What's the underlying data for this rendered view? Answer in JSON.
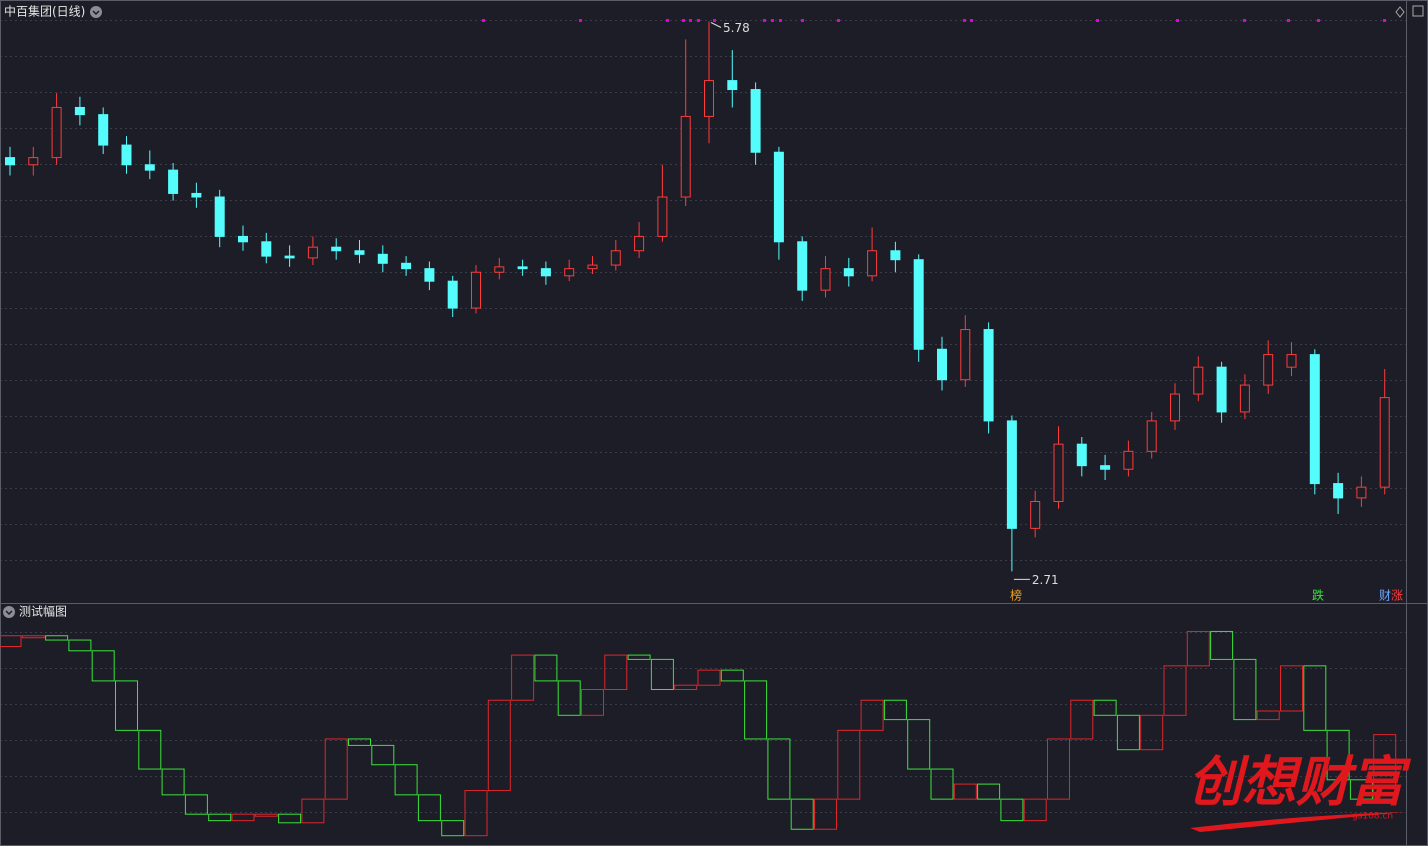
{
  "chart_data": [
    {
      "type": "candlestick",
      "title": "中百集团(日线)",
      "open": [
        5.02,
        4.98,
        5.02,
        5.3,
        5.26,
        5.09,
        4.98,
        4.95,
        4.82,
        4.8,
        4.58,
        4.55,
        4.47,
        4.46,
        4.52,
        4.5,
        4.48,
        4.43,
        4.4,
        4.33,
        4.18,
        4.38,
        4.41,
        4.4,
        4.36,
        4.4,
        4.42,
        4.5,
        4.58,
        4.8,
        5.25,
        5.45,
        5.4,
        5.05,
        4.55,
        4.28,
        4.4,
        4.36,
        4.5,
        4.45,
        3.95,
        3.78,
        4.06,
        3.55,
        2.95,
        3.1,
        3.42,
        3.3,
        3.28,
        3.38,
        3.55,
        3.7,
        3.85,
        3.6,
        3.75,
        3.85,
        3.92,
        3.2,
        3.12,
        3.18
      ],
      "high": [
        5.08,
        5.08,
        5.38,
        5.36,
        5.3,
        5.14,
        5.06,
        4.99,
        4.88,
        4.84,
        4.64,
        4.6,
        4.53,
        4.58,
        4.57,
        4.56,
        4.53,
        4.47,
        4.44,
        4.36,
        4.42,
        4.46,
        4.45,
        4.44,
        4.45,
        4.47,
        4.56,
        4.66,
        4.98,
        5.68,
        5.78,
        5.62,
        5.44,
        5.08,
        4.58,
        4.47,
        4.46,
        4.63,
        4.55,
        4.48,
        4.02,
        4.14,
        4.1,
        3.58,
        3.16,
        3.52,
        3.46,
        3.36,
        3.44,
        3.6,
        3.76,
        3.91,
        3.88,
        3.81,
        4.0,
        3.99,
        3.95,
        3.26,
        3.24,
        3.84
      ],
      "low": [
        4.92,
        4.92,
        4.98,
        5.2,
        5.04,
        4.93,
        4.9,
        4.78,
        4.74,
        4.52,
        4.5,
        4.43,
        4.41,
        4.42,
        4.45,
        4.43,
        4.38,
        4.36,
        4.28,
        4.13,
        4.15,
        4.34,
        4.36,
        4.31,
        4.33,
        4.37,
        4.39,
        4.46,
        4.55,
        4.75,
        5.1,
        5.3,
        4.98,
        4.45,
        4.22,
        4.24,
        4.3,
        4.33,
        4.38,
        3.88,
        3.72,
        3.74,
        3.48,
        2.71,
        2.9,
        3.06,
        3.24,
        3.22,
        3.24,
        3.34,
        3.5,
        3.66,
        3.54,
        3.56,
        3.7,
        3.8,
        3.14,
        3.03,
        3.07,
        3.14
      ],
      "close": [
        4.98,
        5.02,
        5.3,
        5.26,
        5.09,
        4.98,
        4.95,
        4.82,
        4.8,
        4.58,
        4.55,
        4.47,
        4.46,
        4.52,
        4.5,
        4.48,
        4.43,
        4.4,
        4.33,
        4.18,
        4.38,
        4.41,
        4.4,
        4.36,
        4.4,
        4.42,
        4.5,
        4.58,
        4.8,
        5.25,
        5.45,
        5.4,
        5.05,
        4.55,
        4.28,
        4.4,
        4.36,
        4.5,
        4.45,
        3.95,
        3.78,
        4.06,
        3.55,
        2.95,
        3.1,
        3.42,
        3.3,
        3.28,
        3.38,
        3.55,
        3.7,
        3.85,
        3.6,
        3.75,
        3.92,
        3.92,
        3.2,
        3.12,
        3.18,
        3.68
      ],
      "ylim": [
        2.55,
        5.9
      ],
      "up_color": "#ff3b3b",
      "down_color": "#54fcfc",
      "max_label": 5.78,
      "min_label": 2.71,
      "events": [
        "榜",
        "跌",
        "财",
        "涨"
      ]
    },
    {
      "type": "box-step",
      "title": "测试幅图",
      "open": [
        90,
        95,
        95,
        93,
        88,
        74,
        51,
        33,
        21,
        12,
        9,
        12,
        12,
        8,
        19,
        47,
        44,
        35,
        21,
        9,
        2,
        23,
        65,
        86,
        74,
        58,
        70,
        86,
        84,
        70,
        72,
        79,
        74,
        47,
        19,
        5,
        19,
        51,
        65,
        56,
        33,
        19,
        26,
        19,
        9,
        19,
        47,
        65,
        58,
        42,
        58,
        81,
        97,
        84,
        56,
        60,
        81,
        51,
        28,
        19
      ],
      "close": [
        95,
        95,
        93,
        88,
        74,
        51,
        33,
        21,
        12,
        9,
        12,
        12,
        8,
        19,
        47,
        44,
        35,
        21,
        9,
        2,
        23,
        65,
        86,
        74,
        58,
        70,
        86,
        84,
        70,
        72,
        79,
        74,
        47,
        19,
        5,
        19,
        51,
        65,
        56,
        33,
        19,
        26,
        19,
        9,
        19,
        47,
        65,
        58,
        42,
        58,
        81,
        97,
        84,
        56,
        60,
        81,
        51,
        28,
        19,
        49
      ],
      "ylim": [
        0,
        100
      ],
      "up_color": "#e0262b",
      "down_color": "#3be33b"
    }
  ],
  "watermark": {
    "title": "创想财富",
    "url": "gs168.cn"
  }
}
